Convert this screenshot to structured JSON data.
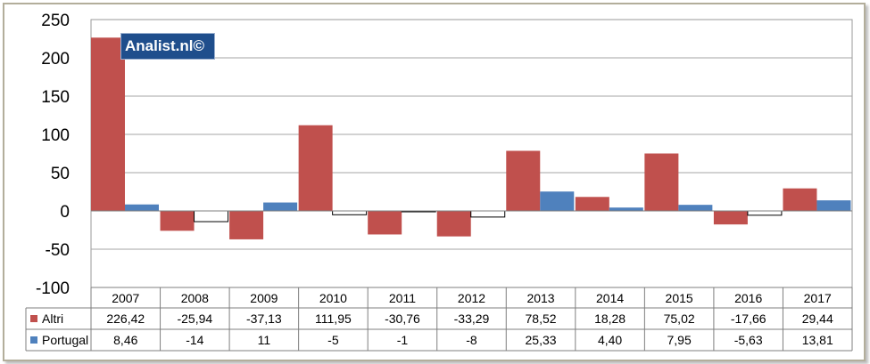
{
  "watermark": "Analist.nl©",
  "colors": {
    "altri": "#c0504d",
    "portugal": "#4f81bd",
    "negative_portugal": "#ffffff"
  },
  "chart_data": {
    "type": "bar",
    "categories": [
      "2007",
      "2008",
      "2009",
      "2010",
      "2011",
      "2012",
      "2013",
      "2014",
      "2015",
      "2016",
      "2017"
    ],
    "series": [
      {
        "name": "Altri",
        "values": [
          226.42,
          -25.94,
          -37.13,
          111.95,
          -30.76,
          -33.29,
          78.52,
          18.28,
          75.02,
          -17.66,
          29.44
        ],
        "labels": [
          "226,42",
          "-25,94",
          "-37,13",
          "111,95",
          "-30,76",
          "-33,29",
          "78,52",
          "18,28",
          "75,02",
          "-17,66",
          "29,44"
        ]
      },
      {
        "name": "Portugal",
        "values": [
          8.46,
          -14,
          11,
          -5,
          -1,
          -8,
          25.33,
          4.4,
          7.95,
          -5.63,
          13.81
        ],
        "labels": [
          "8,46",
          "-14",
          "11",
          "-5",
          "-1",
          "-8",
          "25,33",
          "4,40",
          "7,95",
          "-5,63",
          "13,81"
        ]
      }
    ],
    "ylim": [
      -100,
      250
    ],
    "yticks": [
      "250",
      "200",
      "150",
      "100",
      "50",
      "0",
      "-50",
      "-100"
    ],
    "grid": true,
    "legend": "data-table"
  }
}
